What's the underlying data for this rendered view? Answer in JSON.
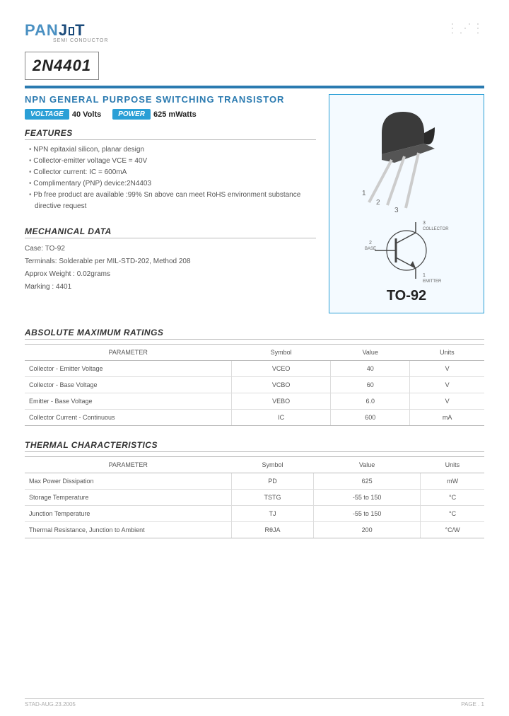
{
  "logo": {
    "part1": "PAN",
    "part2": "J",
    "part3": "T",
    "sub": "SEMI\nCONDUCTOR"
  },
  "part_number": "2N4401",
  "subtitle": "NPN  GENERAL  PURPOSE  SWITCHING  TRANSISTOR",
  "badges": {
    "voltage_label": "VOLTAGE",
    "voltage_val": "40 Volts",
    "power_label": "POWER",
    "power_val": "625 mWatts"
  },
  "features": {
    "heading": "FEATURES",
    "items": [
      "NPN  epitaxial silicon, planar design",
      "Collector-emitter voltage VCE = 40V",
      "Collector current: IC = 600mA",
      "Complimentary (PNP) device:2N4403",
      "Pb free product are available :99% Sn above can meet RoHS environment substance directive request"
    ]
  },
  "mechanical": {
    "heading": "MECHANICAL DATA",
    "lines": [
      "Case: TO-92",
      "Terminals: Solderable per MIL-STD-202, Method 208",
      "Approx Weight : 0.02grams",
      "Marking : 4401"
    ]
  },
  "package": {
    "label": "TO-92",
    "pin1": "1",
    "pin2": "2",
    "pin3": "3",
    "sym_collector": "COLLECTOR",
    "sym_base": "BASE",
    "sym_emitter": "EMITTER",
    "sym_c_num": "3",
    "sym_b_num": "2",
    "sym_e_num": "1"
  },
  "abs_max": {
    "heading": "ABSOLUTE MAXIMUM RATINGS",
    "columns": [
      "PARAMETER",
      "Symbol",
      "Value",
      "Units"
    ],
    "rows": [
      [
        "Collector - Emitter Voltage",
        "VCEO",
        "40",
        "V"
      ],
      [
        "Collector - Base Voltage",
        "VCBO",
        "60",
        "V"
      ],
      [
        "Emitter - Base Voltage",
        "VEBO",
        "6.0",
        "V"
      ],
      [
        "Collector Current - Continuous",
        "IC",
        "600",
        "mA"
      ]
    ]
  },
  "thermal": {
    "heading": "THERMAL CHARACTERISTICS",
    "columns": [
      "PARAMETER",
      "Symbol",
      "Value",
      "Units"
    ],
    "rows": [
      [
        "Max Power Dissipation",
        "PD",
        "625",
        "mW"
      ],
      [
        "Storage Temperature",
        "TSTG",
        "-55 to 150",
        "°C"
      ],
      [
        "Junction Temperature",
        "TJ",
        "-55 to 150",
        "°C"
      ],
      [
        "Thermal Resistance, Junction to Ambient",
        "RθJA",
        "200",
        "°C/W"
      ]
    ]
  },
  "footer": {
    "left": "STAD-AUG.23.2005",
    "right": "PAGE .  1"
  },
  "colors": {
    "accent": "#2a7ab0",
    "badge": "#2a9fd6",
    "frame": "#2a9fd6",
    "diagram_bg": "#f4faff",
    "text_muted": "#555"
  }
}
